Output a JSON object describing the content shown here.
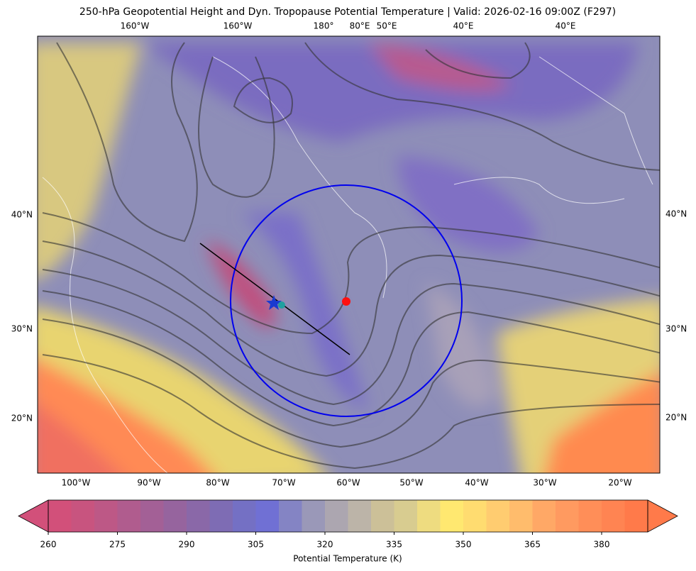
{
  "title": "250-hPa Geopotential Height and Dyn. Tropopause Potential Temperature   |  Valid: 2026-02-16 09:00Z (F297)",
  "map": {
    "top_labels": [
      "160°W",
      "160°W",
      "180°",
      "80°E",
      "50°E",
      "40°E",
      "40°E"
    ],
    "left_labels": [
      "40°N",
      "30°N",
      "20°N"
    ],
    "right_labels": [
      "40°N",
      "30°N",
      "20°N"
    ],
    "bottom_labels": [
      "100°W",
      "90°W",
      "80°W",
      "70°W",
      "60°W",
      "50°W",
      "40°W",
      "30°W",
      "20°W"
    ]
  },
  "colorbar": {
    "label": "Potential Temperature (K)",
    "range": [
      260,
      390
    ],
    "ticks": [
      260,
      275,
      290,
      305,
      320,
      335,
      350,
      365,
      380
    ],
    "colors": [
      "#d2507a",
      "#c8547f",
      "#bd5886",
      "#b05c8e",
      "#a36096",
      "#96649e",
      "#8a68a8",
      "#7e6cb4",
      "#7470c4",
      "#7070d4",
      "#8484c4",
      "#9a98b8",
      "#aca6b0",
      "#bcb4a8",
      "#ccc098",
      "#d8cc90",
      "#eedc80",
      "#ffe870",
      "#ffdc70",
      "#ffcc70",
      "#ffbc6c",
      "#ffa866",
      "#ff9a60",
      "#ff8e58",
      "#ff8452",
      "#ff7a4a"
    ]
  }
}
